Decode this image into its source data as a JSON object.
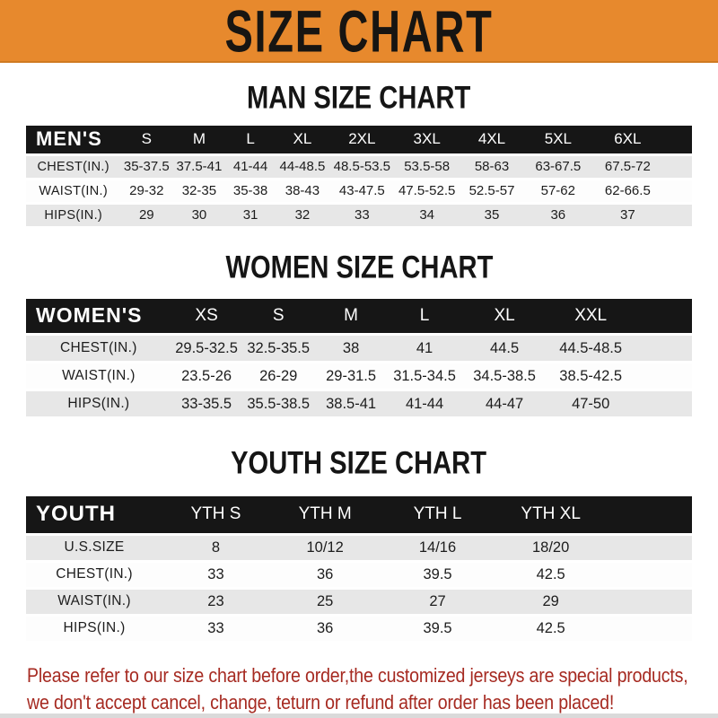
{
  "banner": {
    "title": "SIZE CHART",
    "bg_color": "#e7892d",
    "text_color": "#171512"
  },
  "sections": [
    {
      "heading": "MAN SIZE CHART",
      "table": {
        "label": "MEN'S",
        "columns": [
          "S",
          "M",
          "L",
          "XL",
          "2XL",
          "3XL",
          "4XL",
          "5XL",
          "6XL"
        ],
        "rows": [
          {
            "label": "CHEST(IN.)",
            "values": [
              "35-37.5",
              "37.5-41",
              "41-44",
              "44-48.5",
              "48.5-53.5",
              "53.5-58",
              "58-63",
              "63-67.5",
              "67.5-72"
            ]
          },
          {
            "label": "WAIST(IN.)",
            "values": [
              "29-32",
              "32-35",
              "35-38",
              "38-43",
              "43-47.5",
              "47.5-52.5",
              "52.5-57",
              "57-62",
              "62-66.5"
            ]
          },
          {
            "label": "HIPS(IN.)",
            "values": [
              "29",
              "30",
              "31",
              "32",
              "33",
              "34",
              "35",
              "36",
              "37"
            ]
          }
        ]
      }
    },
    {
      "heading": "WOMEN SIZE CHART",
      "table": {
        "label": "WOMEN'S",
        "columns": [
          "XS",
          "S",
          "M",
          "L",
          "XL",
          "XXL"
        ],
        "rows": [
          {
            "label": "CHEST(IN.)",
            "values": [
              "29.5-32.5",
              "32.5-35.5",
              "38",
              "41",
              "44.5",
              "44.5-48.5"
            ]
          },
          {
            "label": "WAIST(IN.)",
            "values": [
              "23.5-26",
              "26-29",
              "29-31.5",
              "31.5-34.5",
              "34.5-38.5",
              "38.5-42.5"
            ]
          },
          {
            "label": "HIPS(IN.)",
            "values": [
              "33-35.5",
              "35.5-38.5",
              "38.5-41",
              "41-44",
              "44-47",
              "47-50"
            ]
          }
        ]
      }
    },
    {
      "heading": "YOUTH SIZE CHART",
      "table": {
        "label": "YOUTH",
        "columns": [
          "YTH S",
          "YTH M",
          "YTH L",
          "YTH XL"
        ],
        "rows": [
          {
            "label": "U.S.SIZE",
            "values": [
              "8",
              "10/12",
              "14/16",
              "18/20"
            ]
          },
          {
            "label": "CHEST(IN.)",
            "values": [
              "33",
              "36",
              "39.5",
              "42.5"
            ]
          },
          {
            "label": "WAIST(IN.)",
            "values": [
              "23",
              "25",
              "27",
              "29"
            ]
          },
          {
            "label": "HIPS(IN.)",
            "values": [
              "33",
              "36",
              "39.5",
              "42.5"
            ]
          }
        ]
      }
    }
  ],
  "footer": {
    "lines": [
      "Please refer to our size chart before order,the customized jerseys are special products,",
      "we don't accept cancel, change, teturn or refund after order has been placed!"
    ],
    "color": "#a62a21"
  }
}
